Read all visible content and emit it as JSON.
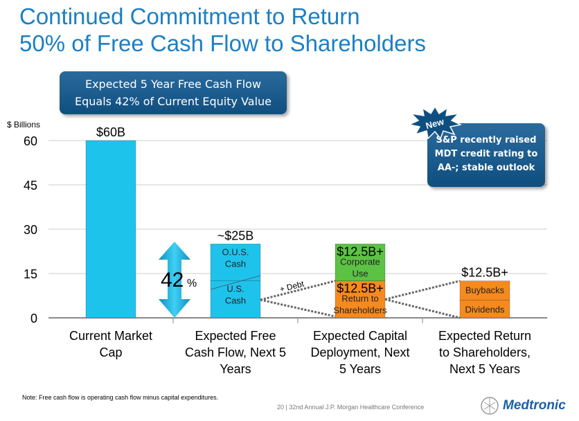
{
  "title_lines": [
    "Continued Commitment to Return",
    "50% of Free Cash Flow to Shareholders"
  ],
  "callout_main": [
    "Expected 5 Year Free Cash Flow",
    "Equals 42% of Current Equity Value"
  ],
  "callout_side": [
    "S&P recently raised",
    "MDT credit rating to",
    "AA-; stable outlook"
  ],
  "new_badge": "New",
  "note": "Note: Free cash flow is operating cash flow minus capital expenditures.",
  "footer": "20 | 32nd Annual J.P. Morgan Healthcare Conference",
  "logo_text": "Medtronic",
  "chart_data": {
    "type": "bar",
    "ylabel": "$ Billions",
    "ylim": [
      0,
      60
    ],
    "yticks": [
      "0",
      "15",
      "30",
      "45",
      "60"
    ],
    "grid": true,
    "categories": [
      [
        "Current Market",
        "Cap"
      ],
      [
        "Expected Free",
        "Cash Flow, Next 5",
        "Years"
      ],
      [
        "Expected Capital",
        "Deployment, Next",
        "5 Years"
      ],
      [
        "Expected Return",
        "to Shareholders,",
        "Next 5 Years"
      ]
    ],
    "bars": [
      {
        "category": 0,
        "segments": [
          {
            "label": "",
            "value": 60,
            "color": "#1ec3ec"
          }
        ],
        "data_label": "$60B"
      },
      {
        "category": 1,
        "segments": [
          {
            "label": "U.S. Cash",
            "value": 12.5,
            "color": "#1ec3ec"
          },
          {
            "label": "O.U.S. Cash",
            "value": 12.5,
            "color": "#1ec3ec"
          }
        ],
        "data_label": "~$25B"
      },
      {
        "category": 2,
        "segments": [
          {
            "label": "Return to Shareholders",
            "value": 12.5,
            "color": "#f58a1f",
            "data_label": "$12.5B+"
          },
          {
            "label": "Corporate Use",
            "value": 12.5,
            "color": "#5cc244",
            "data_label": "$12.5B+"
          }
        ]
      },
      {
        "category": 3,
        "segments": [
          {
            "label": "Dividends",
            "value": 6,
            "color": "#f58a1f"
          },
          {
            "label": "Buybacks",
            "value": 6.5,
            "color": "#f58a1f"
          }
        ],
        "data_label": "$12.5B+"
      }
    ],
    "annotations": {
      "percent": "42",
      "percent_sign": "%",
      "debt": "+ Debt"
    }
  }
}
